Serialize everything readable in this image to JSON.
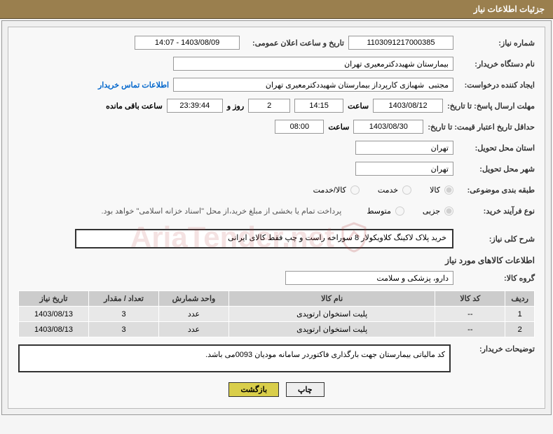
{
  "header": {
    "title": "جزئیات اطلاعات نیاز"
  },
  "form": {
    "need_no_label": "شماره نیاز:",
    "need_no": "1103091217000385",
    "announce_label": "تاریخ و ساعت اعلان عمومی:",
    "announce_value": "1403/08/09 - 14:07",
    "buyer_org_label": "نام دستگاه خریدار:",
    "buyer_org": "بیمارستان شهیددکترمعیری تهران",
    "requester_label": "ایجاد کننده درخواست:",
    "requester": "مجتبی  شهبازی کارپرداز بیمارستان شهیددکترمعیری تهران",
    "contact_link": "اطلاعات تماس خریدار",
    "deadline_send_label": "مهلت ارسال پاسخ: تا تاریخ:",
    "deadline_send_date": "1403/08/12",
    "time_label": "ساعت",
    "deadline_send_time": "14:15",
    "days_remaining": "2",
    "days_text": "روز و",
    "countdown": "23:39:44",
    "remaining_text": "ساعت باقی مانده",
    "validity_label": "حداقل تاریخ اعتبار قیمت: تا تاریخ:",
    "validity_date": "1403/08/30",
    "validity_time": "08:00",
    "province_label": "استان محل تحویل:",
    "province": "تهران",
    "city_label": "شهر محل تحویل:",
    "city": "تهران",
    "category_label": "طبقه بندی موضوعی:",
    "radio_goods": "کالا",
    "radio_service": "خدمت",
    "radio_both": "کالا/خدمت",
    "process_label": "نوع فرآیند خرید:",
    "radio_partial": "جزیی",
    "radio_medium": "متوسط",
    "payment_note": "پرداخت تمام یا بخشی از مبلغ خرید،از محل \"اسناد خزانه اسلامی\" خواهد بود.",
    "summary_label": "شرح کلی نیاز:",
    "summary_text": "خرید پلاک لاکینگ کلاویکولار 8 سوراخه راست و چپ فقط کالای ایرانی",
    "goods_section": "اطلاعات کالاهای مورد نیاز",
    "group_label": "گروه کالا:",
    "group_value": "دارو، پزشکی و سلامت",
    "buyer_note_label": "توضیحات خریدار:",
    "buyer_note_text": "کد مالیاتی بیمارستان جهت بارگذاری فاکتوردر سامانه مودیان 0093می باشد."
  },
  "table": {
    "headers": [
      "ردیف",
      "کد کالا",
      "نام کالا",
      "واحد شمارش",
      "تعداد / مقدار",
      "تاریخ نیاز"
    ],
    "rows": [
      [
        "1",
        "--",
        "پلیت استخوان ارتوپدی",
        "عدد",
        "3",
        "1403/08/13"
      ],
      [
        "2",
        "--",
        "پلیت استخوان ارتوپدی",
        "عدد",
        "3",
        "1403/08/13"
      ]
    ]
  },
  "buttons": {
    "print": "چاپ",
    "back": "بازگشت"
  },
  "watermark": "AriaTender.net"
}
